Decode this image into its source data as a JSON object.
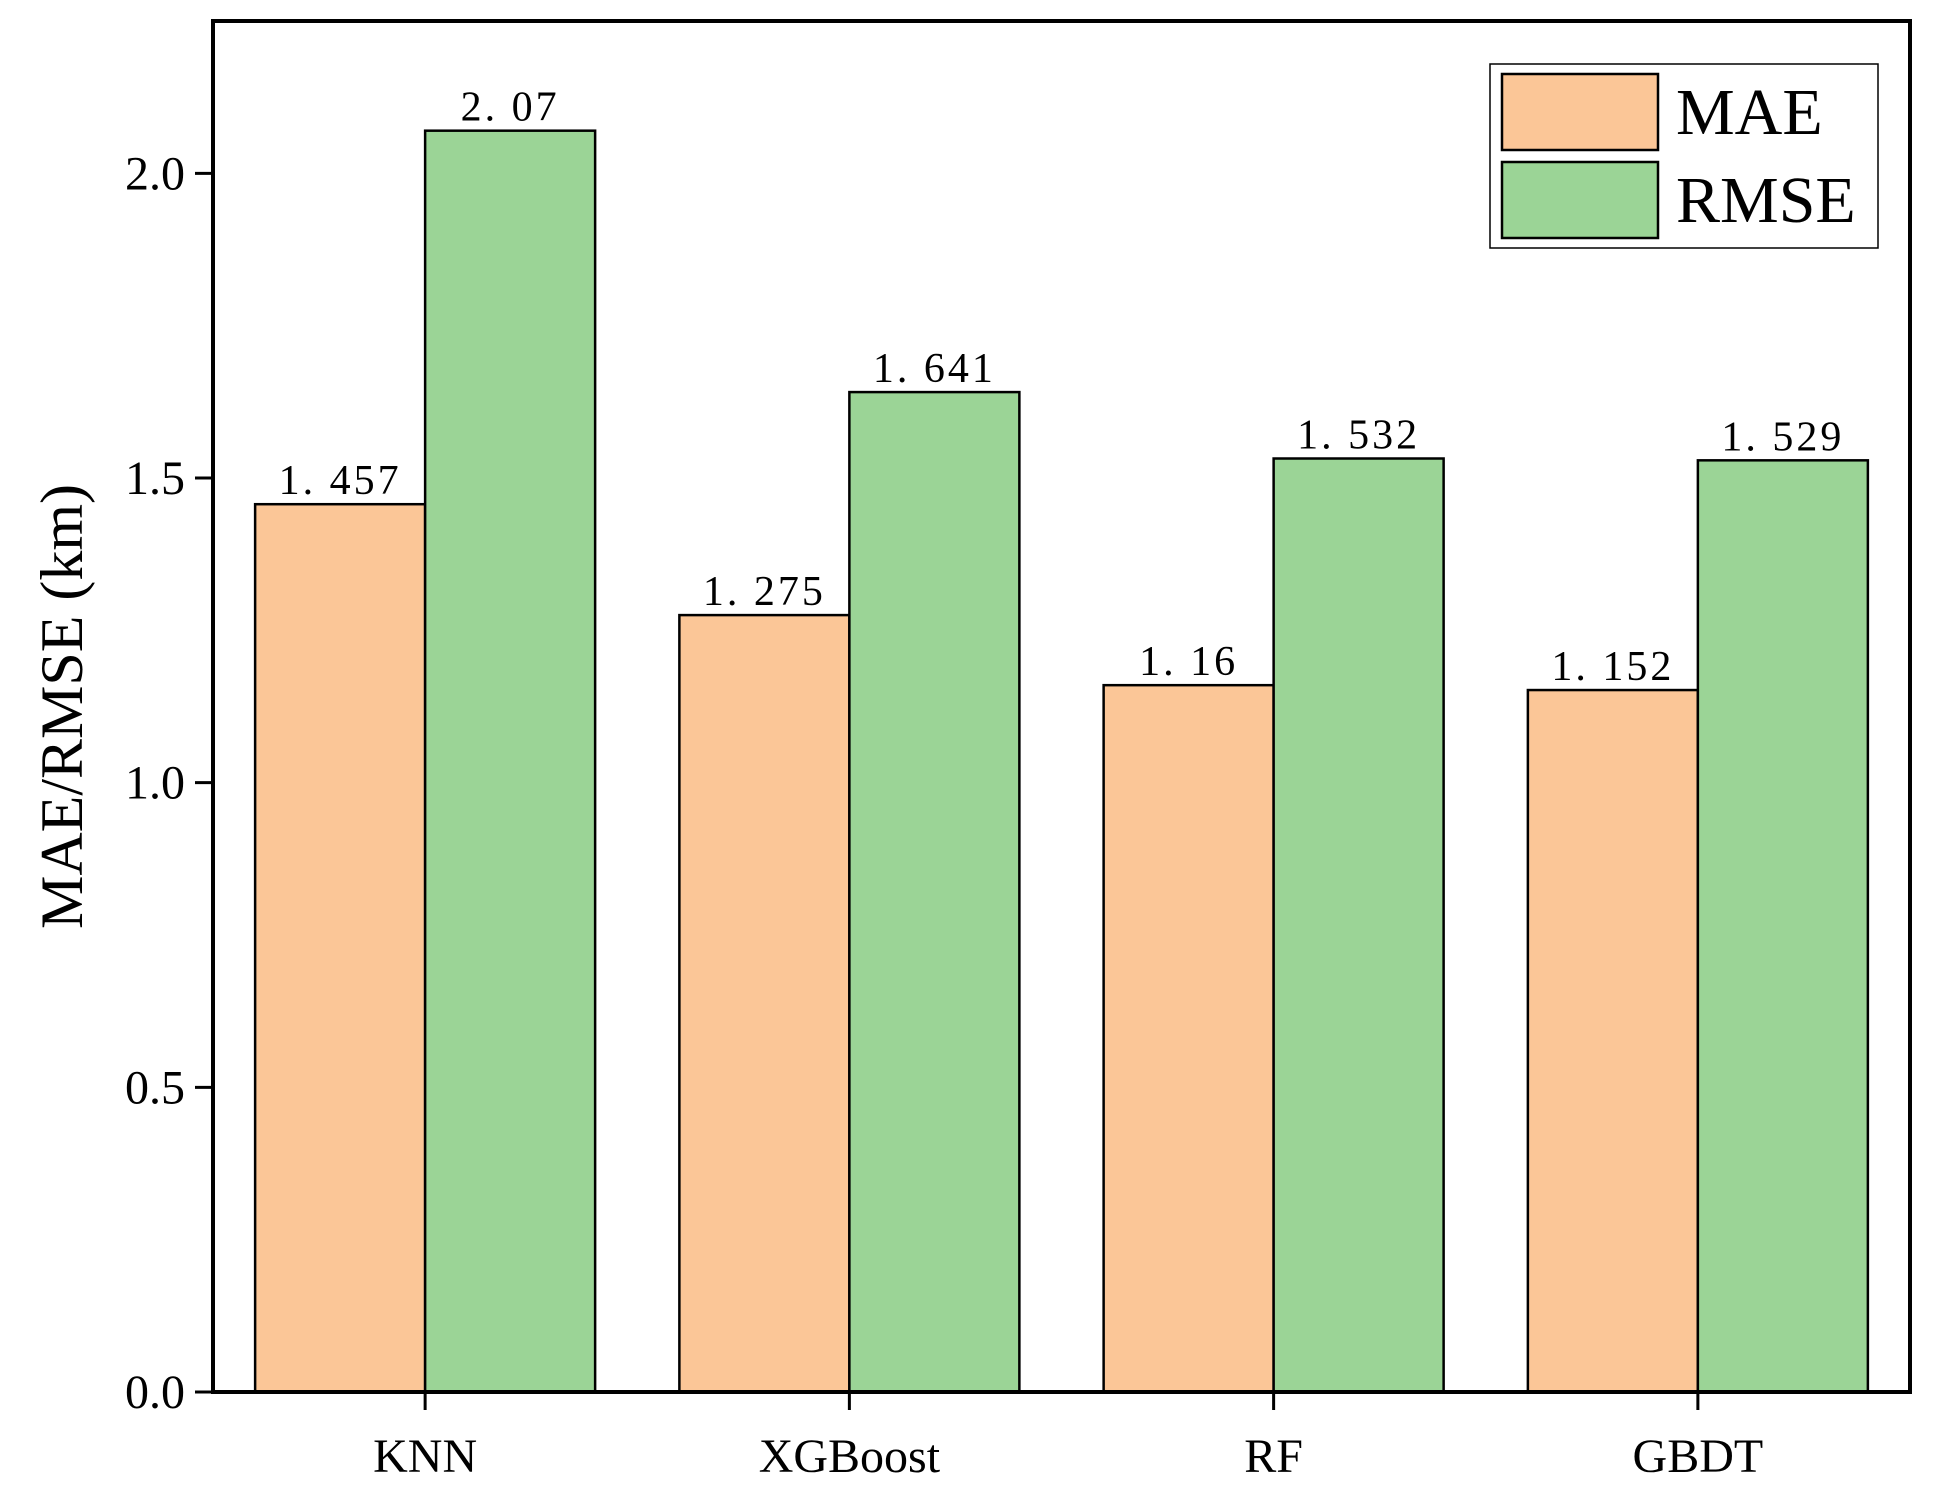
{
  "chart_data": {
    "type": "bar",
    "title": "",
    "xlabel": "",
    "ylabel": "MAE/RMSE (km)",
    "categories": [
      "KNN",
      "XGBoost",
      "RF",
      "GBDT"
    ],
    "series": [
      {
        "name": "MAE",
        "values": [
          1.457,
          1.275,
          1.16,
          1.152
        ],
        "labels": [
          "1. 457",
          "1. 275",
          "1. 16",
          "1. 152"
        ],
        "color": "#fbc697"
      },
      {
        "name": "RMSE",
        "values": [
          2.07,
          1.641,
          1.532,
          1.529
        ],
        "labels": [
          "2. 07",
          "1. 641",
          "1. 532",
          "1. 529"
        ],
        "color": "#9bd496"
      }
    ],
    "ylim": [
      0,
      2.25
    ],
    "yticks": [
      0,
      0.5,
      1.0,
      1.5,
      2.0
    ],
    "ytick_labels": [
      "0.0",
      "0.5",
      "1.0",
      "1.5",
      "2.0"
    ],
    "grid": false,
    "legend_position": "top-right"
  }
}
